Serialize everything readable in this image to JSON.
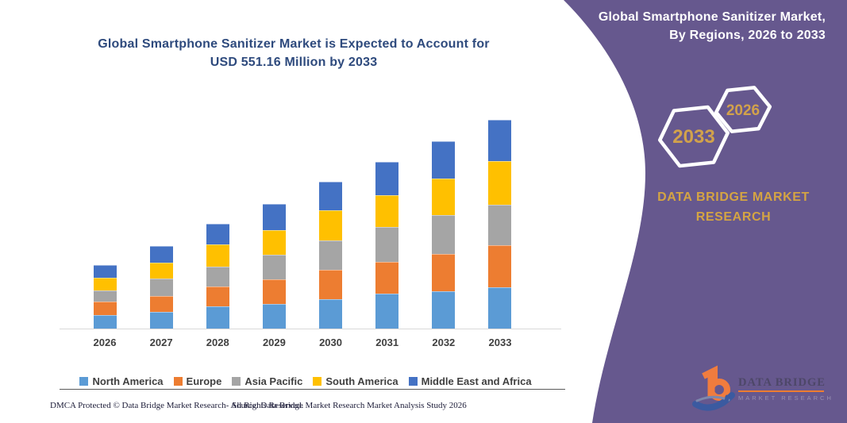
{
  "main": {
    "title_line1": "Global Smartphone Sanitizer Market is Expected to Account for",
    "title_line2": "USD 551.16 Million by 2033"
  },
  "panel": {
    "title_line1": "Global Smartphone Sanitizer Market,",
    "title_line2": "By Regions, 2026 to 2033",
    "hexagon_back_label": "2033",
    "hexagon_front_label": "2026",
    "brand_line1": "DATA BRIDGE MARKET",
    "brand_line2": "RESEARCH",
    "colors": {
      "background": "#66588e",
      "accent_gold": "#d2a24b",
      "hexagon_border": "#ffffff",
      "title_text": "#ffffff"
    }
  },
  "logo": {
    "name": "DATA BRIDGE",
    "subtitle": "MARKET RESEARCH"
  },
  "footer": {
    "dmca": "DMCA Protected © Data Bridge Market Research-  All Rights Reserved.",
    "source": "Source: Data Bridge Market Research  Market Analysis Study 2026"
  },
  "chart_data": {
    "type": "bar",
    "stacked": true,
    "title": "Global Smartphone Sanitizer Market is Expected to Account for USD 551.16 Million by 2033",
    "unit": "USD Million",
    "xlabel": "",
    "ylabel": "",
    "y_axis_visible": false,
    "grid": false,
    "legend_position": "bottom",
    "ylim": [
      0,
      600
    ],
    "categories": [
      "2026",
      "2027",
      "2028",
      "2029",
      "2030",
      "2031",
      "2032",
      "2033"
    ],
    "series": [
      {
        "name": "North America",
        "color": "#5b9bd5",
        "values": [
          34.8,
          43.1,
          57.7,
          63.9,
          77.7,
          91.6,
          98.5,
          109.5
        ]
      },
      {
        "name": "Europe",
        "color": "#ed7d31",
        "values": [
          36.0,
          43.7,
          53.5,
          66.6,
          77.7,
          84.7,
          98.5,
          110.3
        ]
      },
      {
        "name": "Asia Pacific",
        "color": "#a5a5a5",
        "values": [
          29.2,
          44.3,
          52.1,
          63.9,
          77.7,
          91.0,
          101.4,
          105.9
        ]
      },
      {
        "name": "South America",
        "color": "#ffc000",
        "values": [
          33.3,
          41.6,
          57.7,
          66.0,
          79.1,
          85.3,
          97.2,
          116.0
        ]
      },
      {
        "name": "Middle East and Africa",
        "color": "#4472c4",
        "values": [
          33.3,
          45.8,
          55.6,
          68.1,
          74.3,
          87.4,
          99.3,
          109.46
        ]
      }
    ],
    "totals": [
      166.6,
      218.5,
      276.6,
      328.5,
      386.5,
      440.0,
      494.9,
      551.16
    ],
    "highlighted_total": {
      "year": "2033",
      "value": 551.16
    }
  }
}
